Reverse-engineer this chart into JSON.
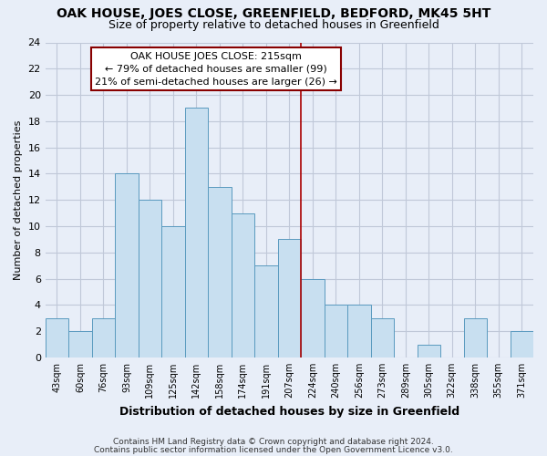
{
  "title": "OAK HOUSE, JOES CLOSE, GREENFIELD, BEDFORD, MK45 5HT",
  "subtitle": "Size of property relative to detached houses in Greenfield",
  "xlabel": "Distribution of detached houses by size in Greenfield",
  "ylabel": "Number of detached properties",
  "categories": [
    "43sqm",
    "60sqm",
    "76sqm",
    "93sqm",
    "109sqm",
    "125sqm",
    "142sqm",
    "158sqm",
    "174sqm",
    "191sqm",
    "207sqm",
    "224sqm",
    "240sqm",
    "256sqm",
    "273sqm",
    "289sqm",
    "305sqm",
    "322sqm",
    "338sqm",
    "355sqm",
    "371sqm"
  ],
  "values": [
    3,
    2,
    3,
    14,
    12,
    10,
    19,
    13,
    11,
    7,
    9,
    6,
    4,
    4,
    3,
    0,
    1,
    0,
    3,
    0,
    2
  ],
  "bar_color": "#c8dff0",
  "bar_edge_color": "#5a9abf",
  "vline_x": 10.5,
  "vline_color": "#aa0000",
  "annotation_title": "OAK HOUSE JOES CLOSE: 215sqm",
  "annotation_line1": "← 79% of detached houses are smaller (99)",
  "annotation_line2": "21% of semi-detached houses are larger (26) →",
  "annotation_box_color": "#ffffff",
  "annotation_box_edge": "#880000",
  "ylim": [
    0,
    24
  ],
  "yticks": [
    0,
    2,
    4,
    6,
    8,
    10,
    12,
    14,
    16,
    18,
    20,
    22,
    24
  ],
  "footer1": "Contains HM Land Registry data © Crown copyright and database right 2024.",
  "footer2": "Contains public sector information licensed under the Open Government Licence v3.0.",
  "background_color": "#e8eef8",
  "grid_color": "#c0c8d8",
  "title_fontsize": 10,
  "subtitle_fontsize": 9
}
